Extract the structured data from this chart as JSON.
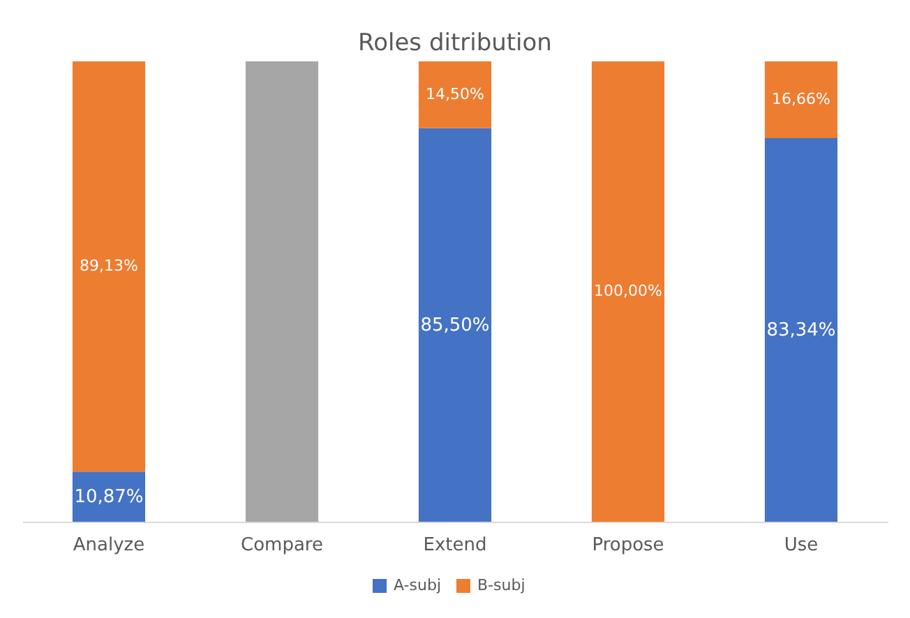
{
  "chart_data": {
    "type": "bar",
    "title": "Roles ditribution",
    "stacked": true,
    "legend": "bottom",
    "tick_labels": "x",
    "categories": [
      "Analyze",
      "Compare",
      "Extend",
      "Propose",
      "Use"
    ],
    "series": [
      {
        "name": "A-subj",
        "color": "#4472c4",
        "values": [
          10.87,
          null,
          85.5,
          null,
          83.34
        ],
        "value_labels": [
          "10,87%",
          null,
          "85,50%",
          null,
          "83,34%"
        ]
      },
      {
        "name": "B-subj",
        "color": "#ed7d31",
        "values": [
          89.13,
          null,
          14.5,
          100,
          16.66
        ],
        "value_labels": [
          "89,13%",
          null,
          "14,50%",
          "100,00%",
          "16,66%"
        ]
      },
      {
        "color": "#a6a6a6",
        "values": [
          null,
          100,
          null,
          null,
          null
        ]
      }
    ]
  }
}
